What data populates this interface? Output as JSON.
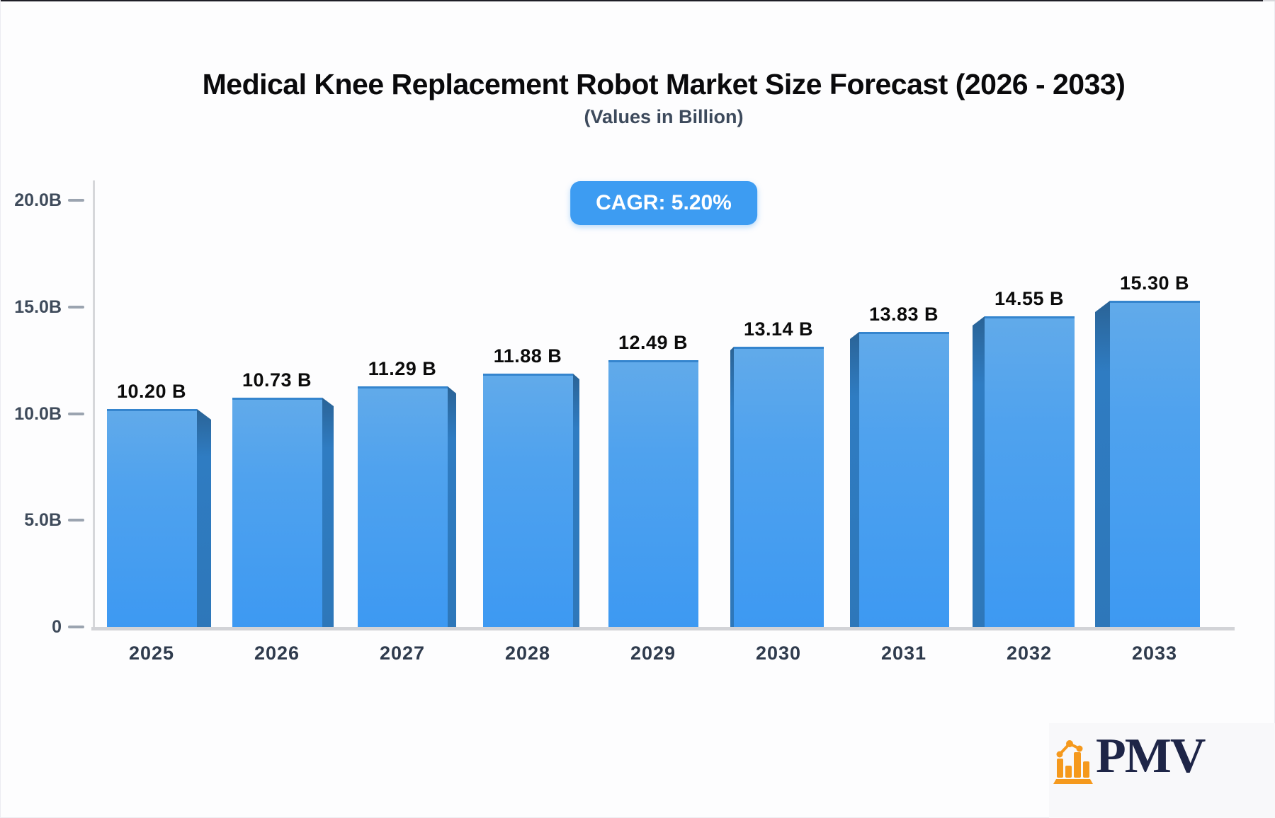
{
  "header": {
    "title": "Medical Knee Replacement Robot Market Size Forecast (2026 - 2033)",
    "subtitle": "(Values in Billion)",
    "cagr_badge": "CAGR: 5.20%"
  },
  "chart_data": {
    "type": "bar",
    "title": "Medical Knee Replacement Robot Market Size Forecast (2026 - 2033)",
    "subtitle": "(Values in Billion)",
    "annotation": "CAGR: 5.20%",
    "categories": [
      "2025",
      "2026",
      "2027",
      "2028",
      "2029",
      "2030",
      "2031",
      "2032",
      "2033"
    ],
    "values": [
      10.2,
      10.73,
      11.29,
      11.88,
      12.49,
      13.14,
      13.83,
      14.55,
      15.3
    ],
    "value_labels": [
      "10.20 B",
      "10.73 B",
      "11.29 B",
      "11.88 B",
      "12.49 B",
      "13.14 B",
      "13.83 B",
      "14.55 B",
      "15.30 B"
    ],
    "unit": "Billion",
    "y_ticks": [
      {
        "label": "20.0B",
        "value": 20
      },
      {
        "label": "15.0B",
        "value": 15
      },
      {
        "label": "10.0B",
        "value": 10
      },
      {
        "label": "5.0B",
        "value": 5
      },
      {
        "label": "0",
        "value": 0
      }
    ],
    "ylim": [
      0,
      20
    ],
    "xlabel": "",
    "ylabel": "",
    "grid": false,
    "legend": false,
    "colors": {
      "bar_face_top": "#61aaea",
      "bar_face_bottom": "#3d99f2",
      "bar_side": "#2e77b9",
      "bar_top_edge": "#3585ce",
      "badge_background": "#3d9cf2",
      "badge_text": "#ffffff",
      "axis_line": "#d2d3d7",
      "tick_text": "#3f4b5b",
      "value_text": "#0b0b0b"
    }
  },
  "branding": {
    "logo_text": "PMV",
    "logo_icon": "bar-chart-logo-icon",
    "logo_text_color": "#1e2547",
    "logo_icon_color": "#f5991d"
  }
}
